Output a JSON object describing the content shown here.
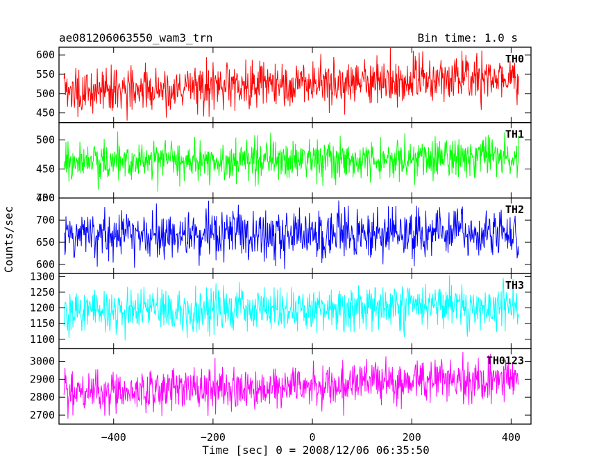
{
  "header": {
    "title": "ae081206063550_wam3_trn",
    "bin_time": "Bin time: 1.0 s"
  },
  "chart_data": {
    "type": "line",
    "title": "ae081206063550_wam3_trn",
    "subtitle": "Bin time: 1.0 s",
    "xlabel": "Time [sec] 0 = 2008/12/06 06:35:50",
    "ylabel": "Counts/sec",
    "xlim": [
      -510,
      440
    ],
    "x_range_data": [
      -500,
      415
    ],
    "x_step": 1.0,
    "x_ticks": [
      -400,
      -200,
      0,
      200,
      400
    ],
    "x_tick_labels": [
      "−400",
      "−200",
      "0",
      "200",
      "400"
    ],
    "grid": false,
    "series": [
      {
        "name": "TH0",
        "color": "#ff0000",
        "ylim": [
          425,
          620
        ],
        "y_ticks": [
          450,
          500,
          550,
          600
        ],
        "y_tick_labels": [
          "450",
          "500",
          "550",
          "600"
        ],
        "mean_start": 505,
        "mean_end": 545,
        "spread": 30,
        "min": 430,
        "max": 618
      },
      {
        "name": "TH1",
        "color": "#00ff00",
        "ylim": [
          400,
          530
        ],
        "y_ticks": [
          400,
          450,
          500
        ],
        "y_tick_labels": [
          "400",
          "450",
          "500"
        ],
        "mean_start": 465,
        "mean_end": 467,
        "spread": 18,
        "min": 405,
        "max": 530
      },
      {
        "name": "TH2",
        "color": "#0000ff",
        "ylim": [
          580,
          750
        ],
        "y_ticks": [
          600,
          650,
          700,
          750
        ],
        "y_tick_labels": [
          "600",
          "650",
          "700",
          "750"
        ],
        "mean_start": 668,
        "mean_end": 670,
        "spread": 28,
        "min": 583,
        "max": 750
      },
      {
        "name": "TH3",
        "color": "#00ffff",
        "ylim": [
          1070,
          1310
        ],
        "y_ticks": [
          1100,
          1150,
          1200,
          1250,
          1300
        ],
        "y_tick_labels": [
          "1100",
          "1150",
          "1200",
          "1250",
          "1300"
        ],
        "mean_start": 1190,
        "mean_end": 1205,
        "spread": 35,
        "min": 1075,
        "max": 1310
      },
      {
        "name": "TH0123",
        "color": "#ff00ff",
        "ylim": [
          2650,
          3070
        ],
        "y_ticks": [
          2700,
          2800,
          2900,
          3000
        ],
        "y_tick_labels": [
          "2700",
          "2800",
          "2900",
          "3000"
        ],
        "mean_start": 2825,
        "mean_end": 2900,
        "spread": 60,
        "min": 2660,
        "max": 3060
      }
    ]
  }
}
